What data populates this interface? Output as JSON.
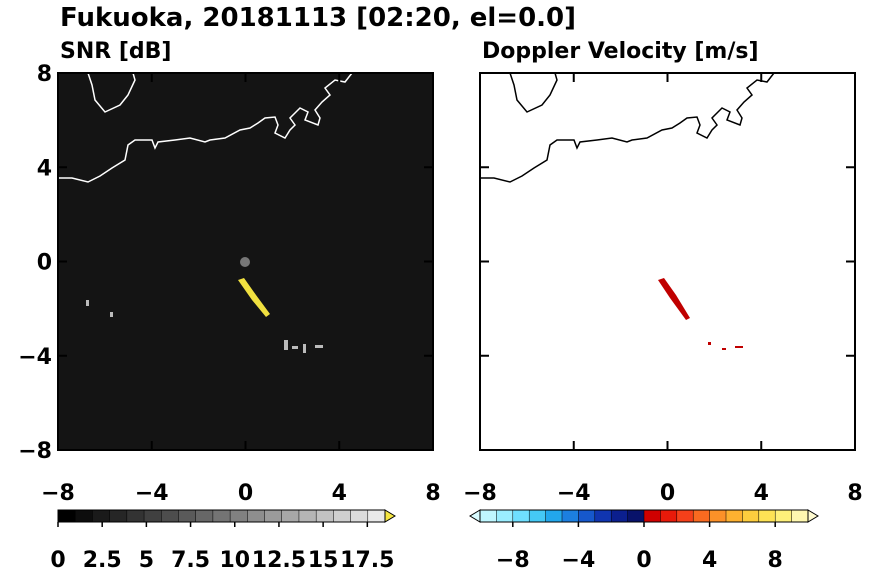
{
  "chart_data": {
    "type": "radar-map",
    "title": "Fukuoka, 20181113 [02:20, el=0.0]",
    "panels": [
      {
        "subtitle": "SNR [dB]",
        "background": "#141414",
        "coast_color": "#ffffff",
        "xlim": [
          -8,
          8
        ],
        "ylim": [
          -8,
          8
        ],
        "xticks": [
          {
            "value": -8,
            "label": "−8"
          },
          {
            "value": -4,
            "label": "−4"
          },
          0,
          4,
          8
        ],
        "yticks": [
          {
            "value": -8,
            "label": "−8"
          },
          {
            "value": -4,
            "label": "−4"
          },
          0,
          4,
          8
        ],
        "show_ytick_labels": true,
        "colorbar": {
          "range": [
            0,
            18.5
          ],
          "ticks": [
            0,
            2.5,
            5,
            7.5,
            10,
            12.5,
            15,
            17.5
          ],
          "colors": [
            "#000000",
            "#0d0d0d",
            "#1a1a1a",
            "#262626",
            "#333333",
            "#404040",
            "#4d4d4d",
            "#5a5a5a",
            "#676767",
            "#747474",
            "#818181",
            "#8e8e8e",
            "#9b9b9b",
            "#a8a8a8",
            "#b5b5b5",
            "#c2c2c2",
            "#cfcfcf",
            "#dcdcdc",
            "#e9e9e9"
          ],
          "extend_high": "#f5e642"
        }
      },
      {
        "subtitle": "Doppler Velocity [m/s]",
        "background": "#ffffff",
        "coast_color": "#000000",
        "xlim": [
          -8,
          8
        ],
        "ylim": [
          -8,
          8
        ],
        "xticks": [
          {
            "value": -8,
            "label": "−8"
          },
          {
            "value": -4,
            "label": "−4"
          },
          0,
          4,
          8
        ],
        "yticks": [
          -8,
          -4,
          0,
          4,
          8
        ],
        "show_ytick_labels": false,
        "colorbar": {
          "range": [
            -10,
            10
          ],
          "ticks": [
            {
              "value": -8,
              "label": "−8"
            },
            {
              "value": -4,
              "label": "−4"
            },
            0,
            4,
            8
          ],
          "colors": [
            "#bff7ff",
            "#9beeff",
            "#6fdfff",
            "#45c9f5",
            "#22a7ec",
            "#1c7fe0",
            "#1658cc",
            "#1035b0",
            "#0b1f8e",
            "#08126a",
            "#d00000",
            "#e81a0a",
            "#f5401a",
            "#fa6a20",
            "#fc9128",
            "#fdb130",
            "#fdcd3e",
            "#fde255",
            "#fef07a",
            "#fff8b0"
          ],
          "extend_low": "#d8fbff",
          "extend_high": "#fffbd0"
        }
      }
    ]
  }
}
